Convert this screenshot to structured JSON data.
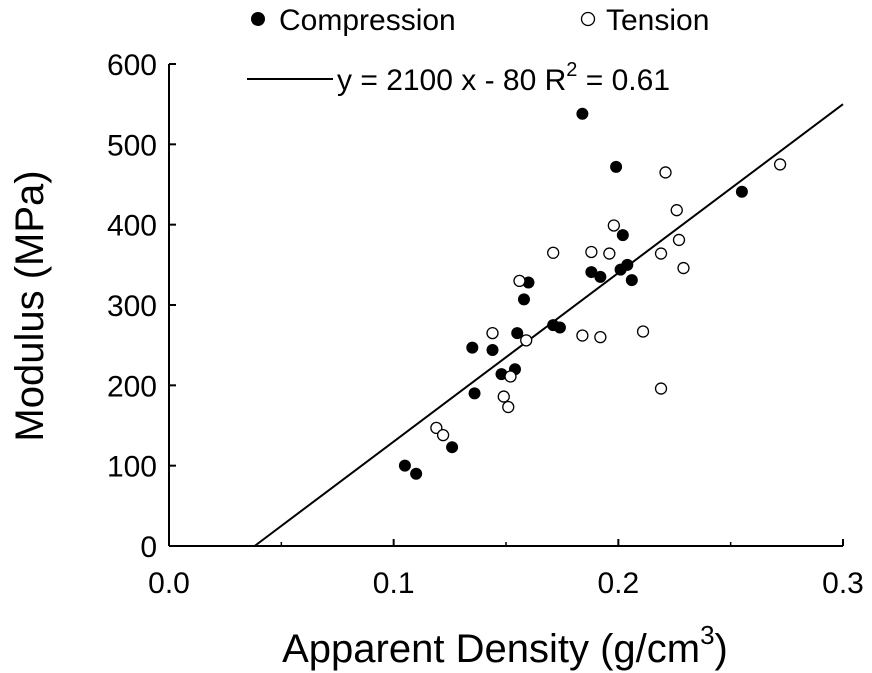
{
  "chart_data": {
    "type": "scatter",
    "title": "",
    "xlabel": "Apparent Density (g/cm",
    "xlabel_sup": "3",
    "xlabel_end": ")",
    "ylabel": "Modulus (MPa)",
    "xlim": [
      0,
      0.3
    ],
    "ylim": [
      0,
      600
    ],
    "x_ticks": [
      0.0,
      0.1,
      0.2,
      0.3
    ],
    "x_tick_labels": [
      "0.0",
      "0.1",
      "0.2",
      "0.3"
    ],
    "x_minor_ticks": [
      0.05,
      0.15,
      0.25
    ],
    "y_ticks": [
      0,
      100,
      200,
      300,
      400,
      500,
      600
    ],
    "y_tick_labels": [
      "0",
      "100",
      "200",
      "300",
      "400",
      "500",
      "600"
    ],
    "grid": false,
    "legend_position": "top",
    "series": [
      {
        "name": "Compression",
        "marker": "filled-circle",
        "color": "#000000",
        "points": [
          [
            0.105,
            100
          ],
          [
            0.11,
            90
          ],
          [
            0.126,
            123
          ],
          [
            0.135,
            247
          ],
          [
            0.136,
            190
          ],
          [
            0.144,
            244
          ],
          [
            0.148,
            214
          ],
          [
            0.154,
            220
          ],
          [
            0.155,
            265
          ],
          [
            0.158,
            307
          ],
          [
            0.16,
            328
          ],
          [
            0.171,
            275
          ],
          [
            0.174,
            272
          ],
          [
            0.184,
            538
          ],
          [
            0.188,
            341
          ],
          [
            0.192,
            335
          ],
          [
            0.199,
            472
          ],
          [
            0.201,
            344
          ],
          [
            0.202,
            387
          ],
          [
            0.204,
            350
          ],
          [
            0.206,
            331
          ],
          [
            0.255,
            441
          ]
        ]
      },
      {
        "name": "Tension",
        "marker": "open-circle",
        "color": "#000000",
        "points": [
          [
            0.119,
            147
          ],
          [
            0.122,
            138
          ],
          [
            0.144,
            265
          ],
          [
            0.149,
            186
          ],
          [
            0.151,
            173
          ],
          [
            0.152,
            211
          ],
          [
            0.156,
            330
          ],
          [
            0.159,
            256
          ],
          [
            0.171,
            365
          ],
          [
            0.184,
            262
          ],
          [
            0.188,
            366
          ],
          [
            0.192,
            260
          ],
          [
            0.196,
            364
          ],
          [
            0.198,
            399
          ],
          [
            0.211,
            267
          ],
          [
            0.219,
            364
          ],
          [
            0.219,
            196
          ],
          [
            0.221,
            465
          ],
          [
            0.226,
            418
          ],
          [
            0.227,
            381
          ],
          [
            0.229,
            346
          ],
          [
            0.272,
            475
          ]
        ]
      }
    ],
    "fit_line": {
      "label": "y = 2100 x - 80  R",
      "label_sup": "2",
      "label_end": " = 0.61",
      "slope": 2100,
      "intercept": -80
    }
  }
}
